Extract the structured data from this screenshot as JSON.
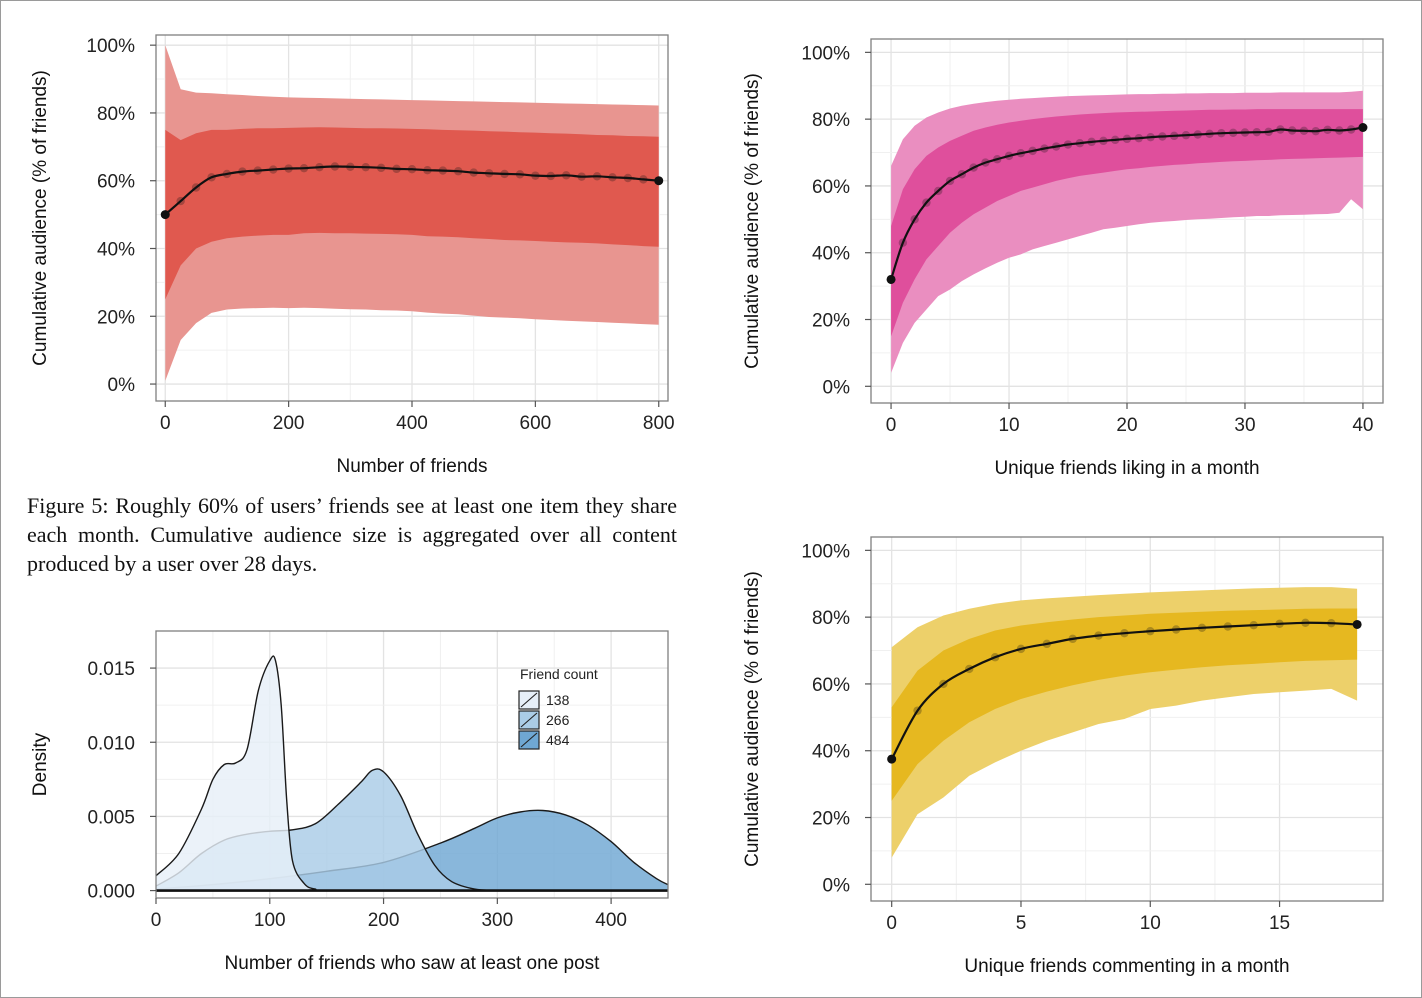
{
  "caption": "Figure 5: Roughly 60% of users’ friends see at least one item they share each month. Cumulative audience size is aggregated over all content produced by a user over 28 days.",
  "chart_data": [
    {
      "id": "p1",
      "type": "line",
      "title": "",
      "xlabel": "Number of friends",
      "ylabel": "Cumulative audience (% of friends)",
      "xlim": [
        -15,
        815
      ],
      "ylim": [
        -5,
        103
      ],
      "xticks": [
        0,
        200,
        400,
        600,
        800
      ],
      "xtick_labels": [
        "0",
        "200",
        "400",
        "600",
        "800"
      ],
      "yticks": [
        0,
        20,
        40,
        60,
        80,
        100
      ],
      "ytick_labels": [
        "0%",
        "20%",
        "40%",
        "60%",
        "80%",
        "100%"
      ],
      "colors": {
        "outer": "#e89590",
        "inner": "#e0594f",
        "line": "#111111",
        "point": "#111111"
      },
      "x": [
        0,
        25,
        50,
        75,
        100,
        125,
        150,
        175,
        200,
        225,
        250,
        275,
        300,
        325,
        350,
        375,
        400,
        425,
        450,
        475,
        500,
        525,
        550,
        575,
        600,
        625,
        650,
        675,
        700,
        725,
        750,
        775,
        800
      ],
      "median": [
        50,
        54,
        58,
        61,
        62,
        62.7,
        63,
        63.3,
        63.6,
        63.7,
        64,
        64.2,
        64.1,
        64,
        63.8,
        63.5,
        63.4,
        63.1,
        63,
        62.8,
        62.4,
        62.2,
        62,
        61.9,
        61.5,
        61.4,
        61.6,
        61.2,
        61.3,
        61,
        60.8,
        60.4,
        60
      ],
      "inner_low": [
        25,
        35,
        40,
        42,
        43,
        43.5,
        43.8,
        44,
        44,
        44.5,
        44.6,
        44.5,
        44.5,
        44.4,
        44.3,
        44.2,
        44,
        43.6,
        43.5,
        43.3,
        43,
        42.8,
        42.5,
        42.4,
        42.2,
        42,
        41.8,
        41.7,
        41.5,
        41.2,
        41,
        40.7,
        40.5
      ],
      "inner_high": [
        75,
        72,
        74,
        75,
        75,
        75.3,
        75.5,
        75.5,
        75.6,
        75.7,
        75.8,
        75.7,
        75.6,
        75.5,
        75.5,
        75.4,
        75.3,
        75.2,
        75,
        74.9,
        74.8,
        74.6,
        74.5,
        74.3,
        74.2,
        74,
        73.9,
        73.7,
        73.5,
        73.4,
        73.2,
        73.1,
        73
      ],
      "outer_low": [
        1,
        13,
        18,
        21,
        22,
        22.3,
        22.4,
        22.5,
        22.4,
        22.5,
        22.4,
        22.2,
        22.1,
        22,
        21.8,
        21.7,
        21.5,
        21.1,
        20.8,
        20.6,
        20.2,
        19.8,
        19.6,
        19.4,
        19.1,
        18.9,
        18.7,
        18.5,
        18.3,
        18.1,
        17.9,
        17.7,
        17.5
      ],
      "outer_high": [
        100,
        87,
        86,
        85.8,
        85.5,
        85.3,
        85,
        84.8,
        84.6,
        84.5,
        84.4,
        84.3,
        84.2,
        84.1,
        84,
        83.9,
        83.8,
        83.7,
        83.6,
        83.5,
        83.4,
        83.3,
        83.2,
        83.1,
        83,
        82.9,
        82.8,
        82.7,
        82.6,
        82.5,
        82.4,
        82.3,
        82.2
      ]
    },
    {
      "id": "p2",
      "type": "line",
      "title": "",
      "xlabel": "Unique friends liking in a month",
      "ylabel": "Cumulative audience (% of friends)",
      "xlim": [
        -1.7,
        41.7
      ],
      "ylim": [
        -5,
        104
      ],
      "xticks": [
        0,
        10,
        20,
        30,
        40
      ],
      "xtick_labels": [
        "0",
        "10",
        "20",
        "30",
        "40"
      ],
      "yticks": [
        0,
        20,
        40,
        60,
        80,
        100
      ],
      "ytick_labels": [
        "0%",
        "20%",
        "40%",
        "60%",
        "80%",
        "100%"
      ],
      "colors": {
        "outer": "#ea8ec0",
        "inner": "#df4f9c",
        "line": "#111111",
        "point": "#111111"
      },
      "x": [
        0,
        1,
        2,
        3,
        4,
        5,
        6,
        7,
        8,
        9,
        10,
        11,
        12,
        13,
        14,
        15,
        16,
        17,
        18,
        19,
        20,
        21,
        22,
        23,
        24,
        25,
        26,
        27,
        28,
        29,
        30,
        31,
        32,
        33,
        34,
        35,
        36,
        37,
        38,
        39,
        40
      ],
      "median": [
        32,
        43,
        50,
        55,
        58.5,
        61.5,
        63.5,
        65.5,
        67,
        68,
        69,
        69.8,
        70.5,
        71.2,
        71.8,
        72.4,
        72.8,
        73.2,
        73.5,
        73.8,
        74.1,
        74.3,
        74.6,
        74.8,
        75,
        75.2,
        75.4,
        75.6,
        75.8,
        75.9,
        76,
        76.1,
        76.2,
        76.9,
        76.6,
        76.5,
        76.4,
        76.8,
        76.6,
        76.9,
        77.5
      ],
      "inner_low": [
        15,
        25,
        32,
        38,
        42,
        46,
        49,
        51.5,
        53.5,
        55.5,
        57,
        58.5,
        59.5,
        60.5,
        61.5,
        62.3,
        63,
        63.5,
        64,
        64.5,
        65,
        65.3,
        65.7,
        66,
        66.3,
        66.5,
        66.8,
        67,
        67.2,
        67.4,
        67.5,
        67.7,
        67.8,
        68,
        68.1,
        68.2,
        68.3,
        68.4,
        68.5,
        68.6,
        68.7
      ],
      "inner_high": [
        48,
        59,
        65,
        69,
        71.5,
        73.5,
        75,
        76.5,
        77.5,
        78.3,
        79,
        79.5,
        80,
        80.4,
        80.8,
        81.1,
        81.4,
        81.6,
        81.8,
        82,
        82.1,
        82.2,
        82.3,
        82.4,
        82.5,
        82.6,
        82.7,
        82.8,
        82.8,
        82.9,
        82.9,
        83,
        83,
        83,
        83,
        83,
        83,
        83,
        83,
        83,
        83
      ],
      "outer_low": [
        4,
        13,
        19,
        23,
        27,
        29,
        31.5,
        33.5,
        35.3,
        37,
        38.5,
        39.5,
        41,
        42,
        43,
        44,
        45,
        46,
        47,
        47.5,
        48,
        48.5,
        49,
        49.3,
        49.5,
        49.8,
        50,
        50.2,
        50.4,
        50.6,
        50.8,
        51,
        51,
        51.2,
        51.3,
        51.4,
        51.5,
        51.6,
        52,
        56,
        53
      ],
      "outer_high": [
        66,
        74,
        78,
        80.5,
        82,
        83.2,
        84,
        84.6,
        85.1,
        85.5,
        85.8,
        86.1,
        86.3,
        86.5,
        86.7,
        86.9,
        87,
        87.1,
        87.2,
        87.3,
        87.4,
        87.5,
        87.5,
        87.6,
        87.6,
        87.7,
        87.7,
        87.8,
        87.8,
        87.8,
        87.9,
        87.9,
        87.9,
        88,
        88,
        88,
        88,
        88,
        88,
        88.2,
        88.5
      ]
    },
    {
      "id": "p3",
      "type": "area",
      "title": "",
      "xlabel": "Number of friends who saw at least one post",
      "ylabel": "Density",
      "xlim": [
        0,
        450
      ],
      "ylim": [
        -0.0005,
        0.0175
      ],
      "xticks": [
        0,
        100,
        200,
        300,
        400
      ],
      "xtick_labels": [
        "0",
        "100",
        "200",
        "300",
        "400"
      ],
      "yticks": [
        0,
        0.005,
        0.01,
        0.015
      ],
      "ytick_labels": [
        "0.000",
        "0.005",
        "0.010",
        "0.015"
      ],
      "legend_title": "Friend count",
      "legend_position": "top-right",
      "series": [
        {
          "name": "138",
          "color": "#e6eff8",
          "x": [
            0,
            20,
            40,
            50,
            60,
            70,
            80,
            90,
            100,
            105,
            110,
            115,
            120,
            130,
            140,
            160,
            450
          ],
          "values": [
            0.001,
            0.0025,
            0.0055,
            0.0075,
            0.0085,
            0.0086,
            0.0095,
            0.0135,
            0.0155,
            0.0155,
            0.0125,
            0.006,
            0.002,
            0.0005,
            0.0001,
            0,
            0
          ]
        },
        {
          "name": "266",
          "color": "#aacce6",
          "x": [
            0,
            20,
            40,
            60,
            80,
            100,
            120,
            140,
            160,
            180,
            190,
            200,
            215,
            230,
            245,
            260,
            280,
            300,
            320,
            450
          ],
          "values": [
            0.0003,
            0.0012,
            0.0025,
            0.0034,
            0.0038,
            0.004,
            0.0041,
            0.0045,
            0.0058,
            0.0073,
            0.0081,
            0.008,
            0.0064,
            0.0038,
            0.0017,
            0.0006,
            0.0001,
            0,
            0,
            0
          ]
        },
        {
          "name": "484",
          "color": "#6fa7d3",
          "x": [
            0,
            50,
            100,
            150,
            200,
            250,
            280,
            300,
            320,
            340,
            360,
            380,
            400,
            420,
            440,
            450
          ],
          "values": [
            0.0001,
            0.0004,
            0.0008,
            0.0013,
            0.0019,
            0.0032,
            0.0042,
            0.0049,
            0.0053,
            0.0054,
            0.0051,
            0.0044,
            0.0033,
            0.0019,
            0.0008,
            0.0004
          ]
        }
      ]
    },
    {
      "id": "p4",
      "type": "line",
      "title": "",
      "xlabel": "Unique friends commenting in a month",
      "ylabel": "Cumulative audience (% of friends)",
      "xlim": [
        -0.8,
        19
      ],
      "ylim": [
        -5,
        104
      ],
      "xticks": [
        0,
        5,
        10,
        15
      ],
      "xtick_labels": [
        "0",
        "5",
        "10",
        "15"
      ],
      "yticks": [
        0,
        20,
        40,
        60,
        80,
        100
      ],
      "ytick_labels": [
        "0%",
        "20%",
        "40%",
        "60%",
        "80%",
        "100%"
      ],
      "colors": {
        "outer": "#edd06a",
        "inner": "#e6b820",
        "line": "#111111",
        "point": "#111111"
      },
      "x": [
        0,
        1,
        2,
        3,
        4,
        5,
        6,
        7,
        8,
        9,
        10,
        11,
        12,
        13,
        14,
        15,
        16,
        17,
        18
      ],
      "median": [
        37.5,
        52,
        60,
        64.5,
        68,
        70.5,
        72,
        73.5,
        74.5,
        75.2,
        75.8,
        76.3,
        76.8,
        77.2,
        77.6,
        78,
        78.3,
        78.2,
        77.8
      ],
      "inner_low": [
        25,
        36,
        43,
        48.5,
        52.5,
        55.5,
        57.7,
        59.6,
        61.2,
        62.5,
        63.5,
        64.3,
        65,
        65.6,
        66,
        66.5,
        66.9,
        67.1,
        67.3
      ],
      "inner_high": [
        53,
        64,
        70,
        73.5,
        76,
        77.5,
        78.5,
        79.3,
        80,
        80.5,
        81,
        81.3,
        81.6,
        81.9,
        82.1,
        82.3,
        82.5,
        82.6,
        82.6
      ],
      "outer_low": [
        8,
        21,
        26,
        32.5,
        36.5,
        40,
        43,
        45.5,
        48,
        49.5,
        52.5,
        53.5,
        55,
        56,
        57,
        57.5,
        58,
        58.5,
        55
      ],
      "outer_high": [
        71,
        77,
        80.5,
        82.5,
        84,
        85,
        85.6,
        86.1,
        86.6,
        87,
        87.4,
        87.7,
        88,
        88.3,
        88.6,
        88.8,
        89,
        89,
        88.5
      ]
    }
  ]
}
